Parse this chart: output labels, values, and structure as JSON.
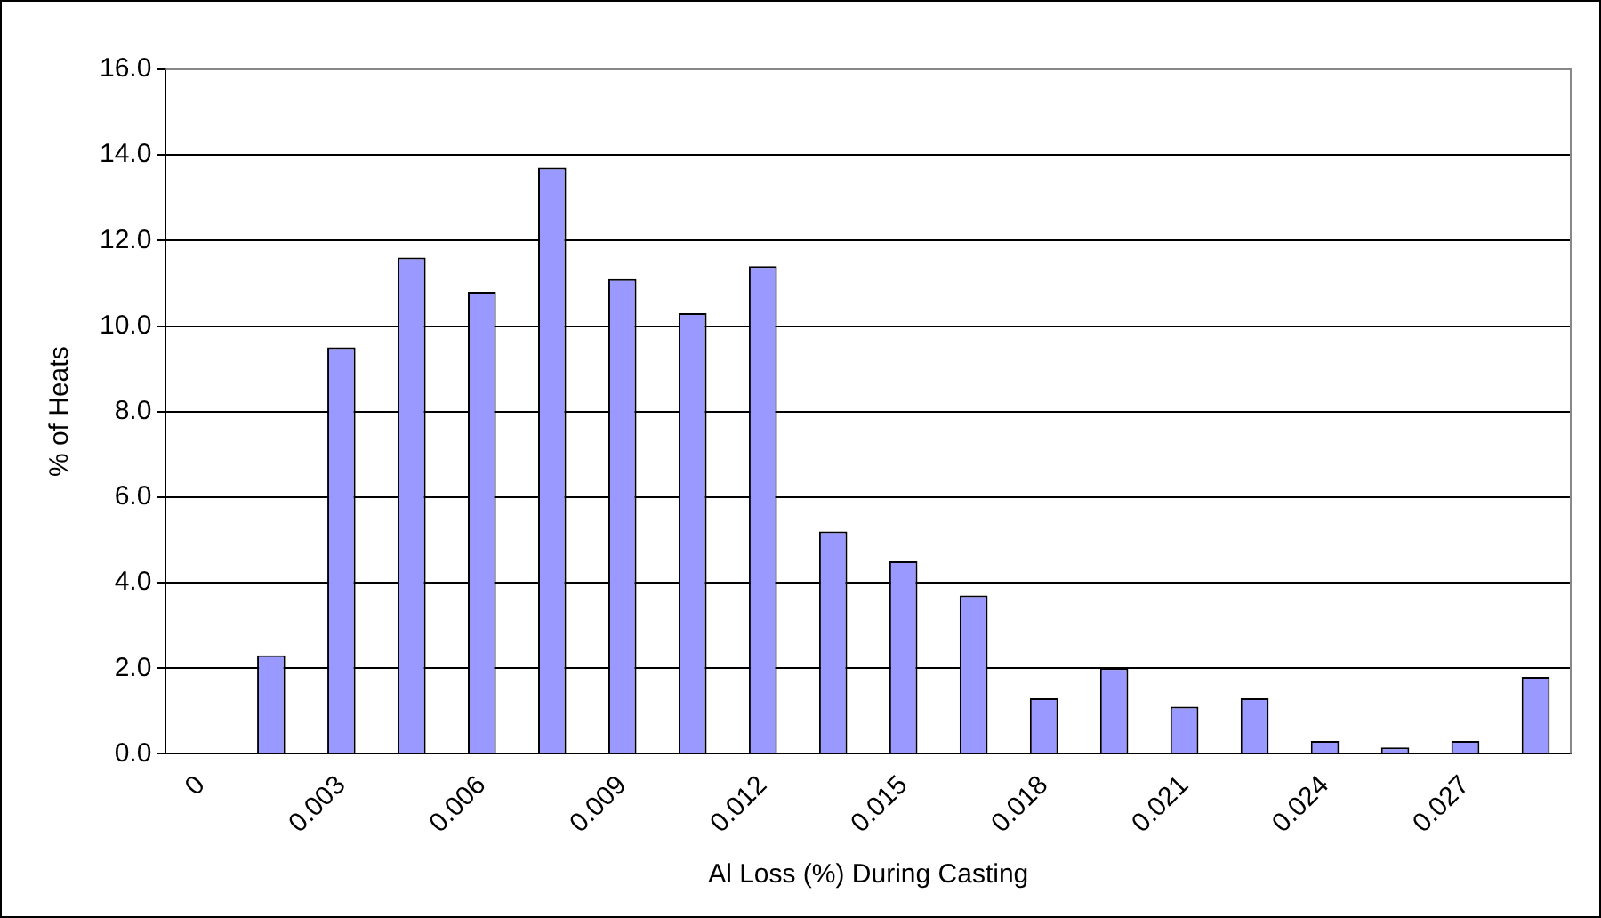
{
  "chart_data": {
    "type": "bar",
    "xlabel": "Al Loss (%) During Casting",
    "ylabel": "% of Heats",
    "categories": [
      "0",
      null,
      "0.003",
      null,
      "0.006",
      null,
      "0.009",
      null,
      "0.012",
      null,
      "0.015",
      null,
      "0.018",
      null,
      "0.021",
      null,
      "0.024",
      null,
      "0.027",
      null
    ],
    "series": [
      {
        "color": "#9999ff",
        "values": [
          0,
          2.3,
          9.5,
          11.6,
          10.8,
          13.7,
          11.1,
          10.3,
          11.4,
          5.2,
          4.5,
          3.7,
          1.3,
          2.0,
          1.1,
          1.3,
          0.3,
          0.15,
          0.3,
          1.8
        ]
      }
    ],
    "ylim": [
      0,
      16
    ],
    "yticks": [
      {
        "value": 0,
        "label": "0.0"
      },
      {
        "value": 2,
        "label": "2.0"
      },
      {
        "value": 4,
        "label": "4.0"
      },
      {
        "value": 6,
        "label": "6.0"
      },
      {
        "value": 8,
        "label": "8.0"
      },
      {
        "value": 10,
        "label": "10.0"
      },
      {
        "value": 12,
        "label": "12.0"
      },
      {
        "value": 14,
        "label": "14.0"
      },
      {
        "value": 16,
        "label": "16.0"
      }
    ],
    "grid": "y",
    "legend": false
  }
}
